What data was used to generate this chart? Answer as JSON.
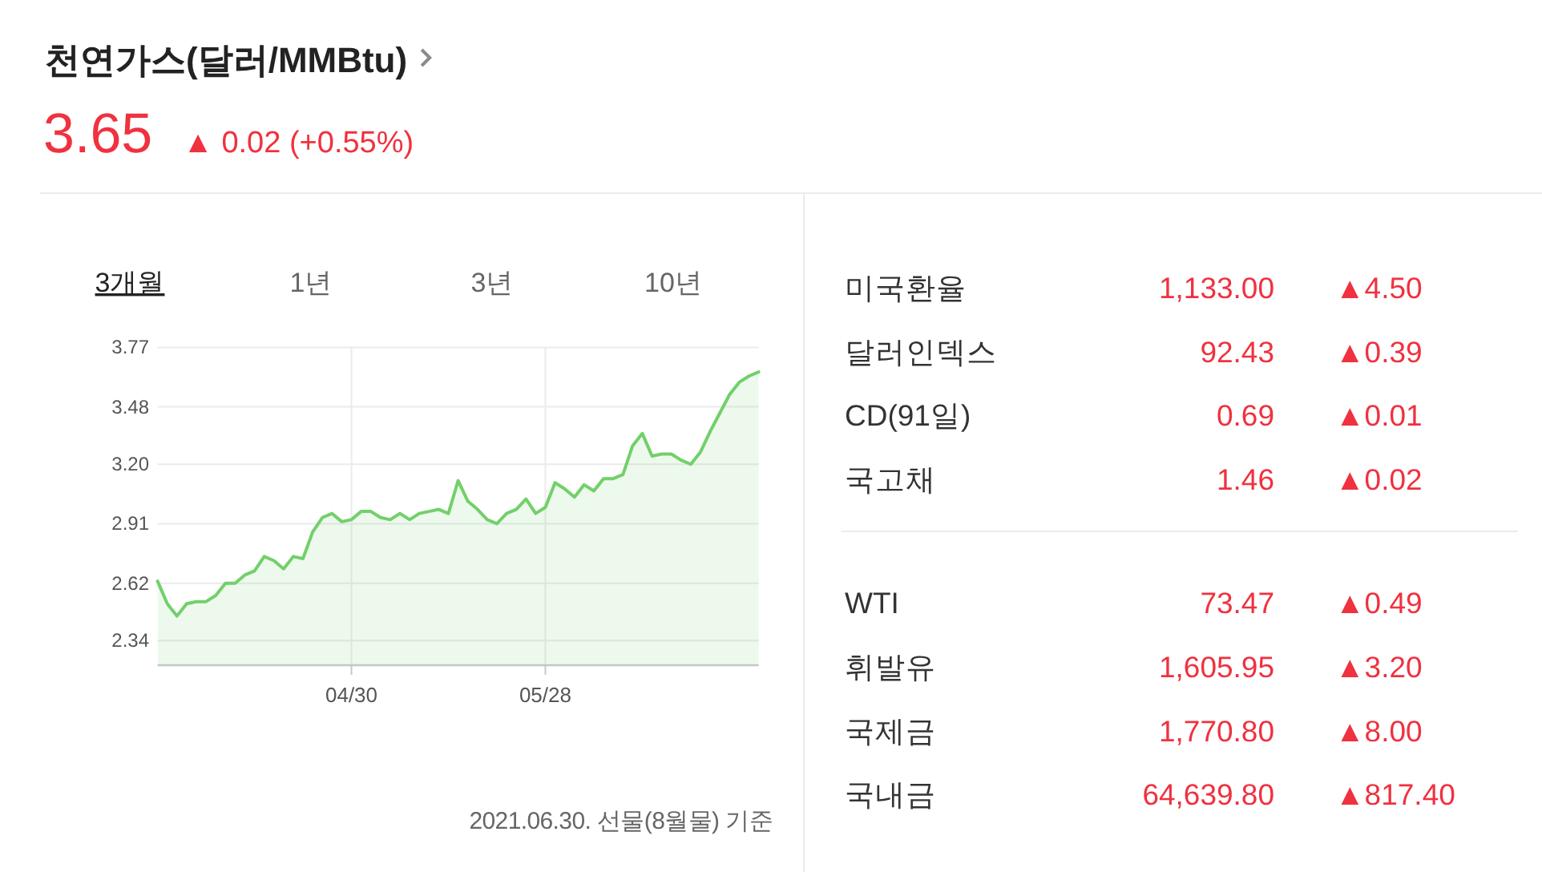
{
  "chart_data": [
    {
      "type": "area",
      "title": "천연가스(달러/MMBtu)",
      "subtitle": "3.65",
      "annotations": [
        "▲ 0.02 (+0.55%)",
        "3개월",
        "1년",
        "3년",
        "10년",
        "2021.06.30. 선물(8월물) 기준"
      ],
      "categories": [
        null,
        null,
        null,
        null,
        null,
        null,
        null,
        null,
        null,
        null,
        null,
        null,
        null,
        null,
        null,
        null,
        null,
        null,
        null,
        null,
        "04/30",
        null,
        null,
        null,
        null,
        null,
        null,
        null,
        null,
        null,
        null,
        null,
        null,
        null,
        null,
        null,
        null,
        null,
        null,
        null,
        "05/28",
        null,
        null,
        null,
        null,
        null,
        null,
        null,
        null,
        null,
        null,
        null,
        null,
        null,
        null,
        null,
        null,
        null,
        null,
        null,
        null,
        null,
        null
      ],
      "values": [
        2.63,
        2.52,
        2.46,
        2.52,
        2.53,
        2.53,
        2.56,
        2.62,
        2.62,
        2.66,
        2.68,
        2.75,
        2.73,
        2.69,
        2.75,
        2.74,
        2.87,
        2.94,
        2.96,
        2.92,
        2.93,
        2.97,
        2.97,
        2.94,
        2.93,
        2.96,
        2.93,
        2.96,
        2.97,
        2.98,
        2.96,
        3.12,
        3.02,
        2.98,
        2.93,
        2.91,
        2.96,
        2.98,
        3.03,
        2.96,
        2.99,
        3.11,
        3.08,
        3.04,
        3.1,
        3.07,
        3.13,
        3.13,
        3.15,
        3.29,
        3.35,
        3.24,
        3.25,
        3.25,
        3.22,
        3.2,
        3.26,
        3.36,
        3.45,
        3.54,
        3.6,
        3.63,
        3.65
      ],
      "color": "#72d06a",
      "ylim": [
        2.22,
        3.77
      ],
      "yticks": [
        2.34,
        2.62,
        2.91,
        {
          "value": 3.2,
          "label": "3.20"
        },
        3.48,
        3.77
      ],
      "grid": true
    },
    {
      "type": "other",
      "annotations": [
        "미국환율",
        "1,133.00",
        "▲4.50",
        "달러인덱스",
        "92.43",
        "▲0.39",
        "CD(91일)",
        "0.69",
        "▲0.01",
        "국고채",
        "1.46",
        "▲0.02"
      ]
    },
    {
      "type": "other",
      "annotations": [
        "WTI",
        "73.47",
        "▲0.49",
        "휘발유",
        "1,605.95",
        "▲3.20",
        "국제금",
        "1,770.80",
        "▲8.00",
        "국내금",
        "64,639.80",
        "▲817.40"
      ]
    }
  ]
}
